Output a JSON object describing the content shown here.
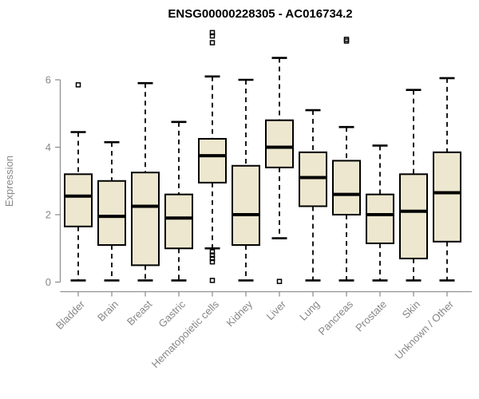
{
  "chart_data": {
    "type": "boxplot",
    "title": "ENSG00000228305 - AC016734.2",
    "xlabel": "",
    "ylabel": "Expression",
    "ylim": [
      0,
      6
    ],
    "yticks": [
      "0",
      "2",
      "4",
      "6"
    ],
    "grid": false,
    "legend": null,
    "categories": [
      "Bladder",
      "Brain",
      "Breast",
      "Gastric",
      "Hematopoietic cells",
      "Kidney",
      "Liver",
      "Lung",
      "Pancreas",
      "Prostate",
      "Skin",
      "Unknown / Other"
    ],
    "series": [
      {
        "name": "Bladder",
        "whisker_low": 0.05,
        "q1": 1.65,
        "median": 2.55,
        "q3": 3.2,
        "whisker_high": 4.45,
        "outliers": [
          5.85
        ]
      },
      {
        "name": "Brain",
        "whisker_low": 0.05,
        "q1": 1.1,
        "median": 1.95,
        "q3": 3.0,
        "whisker_high": 4.15,
        "outliers": []
      },
      {
        "name": "Breast",
        "whisker_low": 0.05,
        "q1": 0.5,
        "median": 2.25,
        "q3": 3.25,
        "whisker_high": 5.9,
        "outliers": []
      },
      {
        "name": "Gastric",
        "whisker_low": 0.05,
        "q1": 1.0,
        "median": 1.9,
        "q3": 2.6,
        "whisker_high": 4.75,
        "outliers": []
      },
      {
        "name": "Hematopoietic cells",
        "whisker_low": 1.0,
        "q1": 2.95,
        "median": 3.75,
        "q3": 4.25,
        "whisker_high": 6.1,
        "outliers": [
          7.4,
          7.3,
          7.1,
          0.9,
          0.8,
          0.7,
          0.6,
          0.05
        ]
      },
      {
        "name": "Kidney",
        "whisker_low": 0.05,
        "q1": 1.1,
        "median": 2.0,
        "q3": 3.45,
        "whisker_high": 6.0,
        "outliers": []
      },
      {
        "name": "Liver",
        "whisker_low": 1.3,
        "q1": 3.4,
        "median": 4.0,
        "q3": 4.8,
        "whisker_high": 6.65,
        "outliers": [
          0.02
        ]
      },
      {
        "name": "Lung",
        "whisker_low": 0.05,
        "q1": 2.25,
        "median": 3.1,
        "q3": 3.85,
        "whisker_high": 5.1,
        "outliers": []
      },
      {
        "name": "Pancreas",
        "whisker_low": 0.05,
        "q1": 2.0,
        "median": 2.6,
        "q3": 3.6,
        "whisker_high": 4.6,
        "outliers": [
          7.2,
          7.15
        ]
      },
      {
        "name": "Prostate",
        "whisker_low": 0.05,
        "q1": 1.15,
        "median": 2.0,
        "q3": 2.6,
        "whisker_high": 4.05,
        "outliers": []
      },
      {
        "name": "Skin",
        "whisker_low": 0.05,
        "q1": 0.7,
        "median": 2.1,
        "q3": 3.2,
        "whisker_high": 5.7,
        "outliers": []
      },
      {
        "name": "Unknown / Other",
        "whisker_low": 0.05,
        "q1": 1.2,
        "median": 2.65,
        "q3": 3.85,
        "whisker_high": 6.05,
        "outliers": []
      }
    ],
    "colors": {
      "box_fill": "#EDE7CF",
      "box_border": "#000000",
      "median": "#000000",
      "whisker": "#000000",
      "outlier": "#000000",
      "axis_line": "#919191",
      "axis_text": "#878787",
      "title_text": "#000000",
      "background": "#FFFFFF"
    }
  }
}
